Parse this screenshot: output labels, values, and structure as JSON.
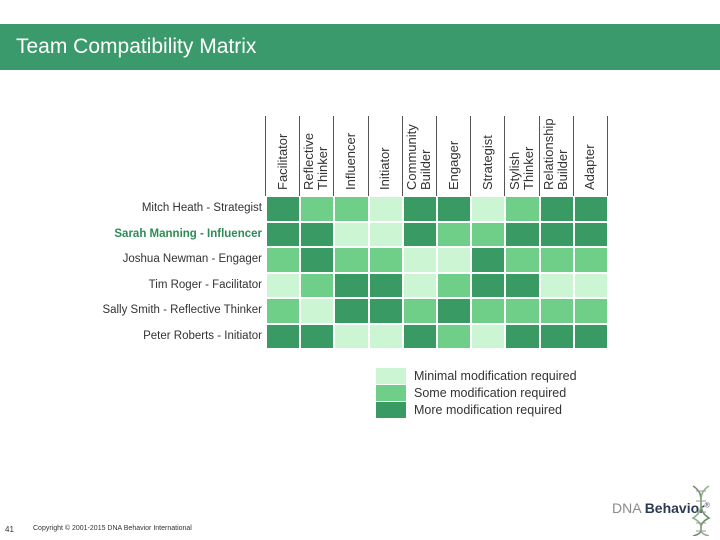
{
  "header": {
    "title": "Team Compatibility Matrix"
  },
  "columns": [
    [
      "Facilitator"
    ],
    [
      "Reflective",
      "Thinker"
    ],
    [
      "Influencer"
    ],
    [
      "Initiator"
    ],
    [
      "Community",
      "Builder"
    ],
    [
      "Engager"
    ],
    [
      "Strategist"
    ],
    [
      "Stylish",
      "Thinker"
    ],
    [
      "Relationship",
      "Builder"
    ],
    [
      "Adapter"
    ]
  ],
  "rows": [
    {
      "label": "Mitch Heath - Strategist",
      "highlight": false,
      "levels": [
        3,
        2,
        2,
        1,
        3,
        3,
        1,
        2,
        3,
        3
      ]
    },
    {
      "label": "Sarah Manning - Influencer",
      "highlight": true,
      "levels": [
        3,
        3,
        1,
        1,
        3,
        2,
        2,
        3,
        3,
        3
      ]
    },
    {
      "label": "Joshua Newman - Engager",
      "highlight": false,
      "levels": [
        2,
        3,
        2,
        2,
        1,
        1,
        3,
        2,
        2,
        2
      ]
    },
    {
      "label": "Tim Roger - Facilitator",
      "highlight": false,
      "levels": [
        1,
        2,
        3,
        3,
        1,
        2,
        3,
        3,
        1,
        1
      ]
    },
    {
      "label": "Sally Smith - Reflective Thinker",
      "highlight": false,
      "levels": [
        2,
        1,
        3,
        3,
        2,
        3,
        2,
        2,
        2,
        2
      ]
    },
    {
      "label": "Peter Roberts - Initiator",
      "highlight": false,
      "levels": [
        3,
        3,
        1,
        1,
        3,
        2,
        1,
        3,
        3,
        3
      ]
    }
  ],
  "legend": [
    {
      "level": 1,
      "label": "Minimal modification required",
      "color": "#ccf5d3"
    },
    {
      "level": 2,
      "label": "Some modification required",
      "color": "#6fcf88"
    },
    {
      "level": 3,
      "label": "More modification required",
      "color": "#3a9a63"
    }
  ],
  "footer": {
    "page_number": "41",
    "copyright": "Copyright © 2001-2015 DNA Behavior International"
  },
  "logo": {
    "part1": "DNA ",
    "part2": "Behavior",
    "reg": "®"
  }
}
